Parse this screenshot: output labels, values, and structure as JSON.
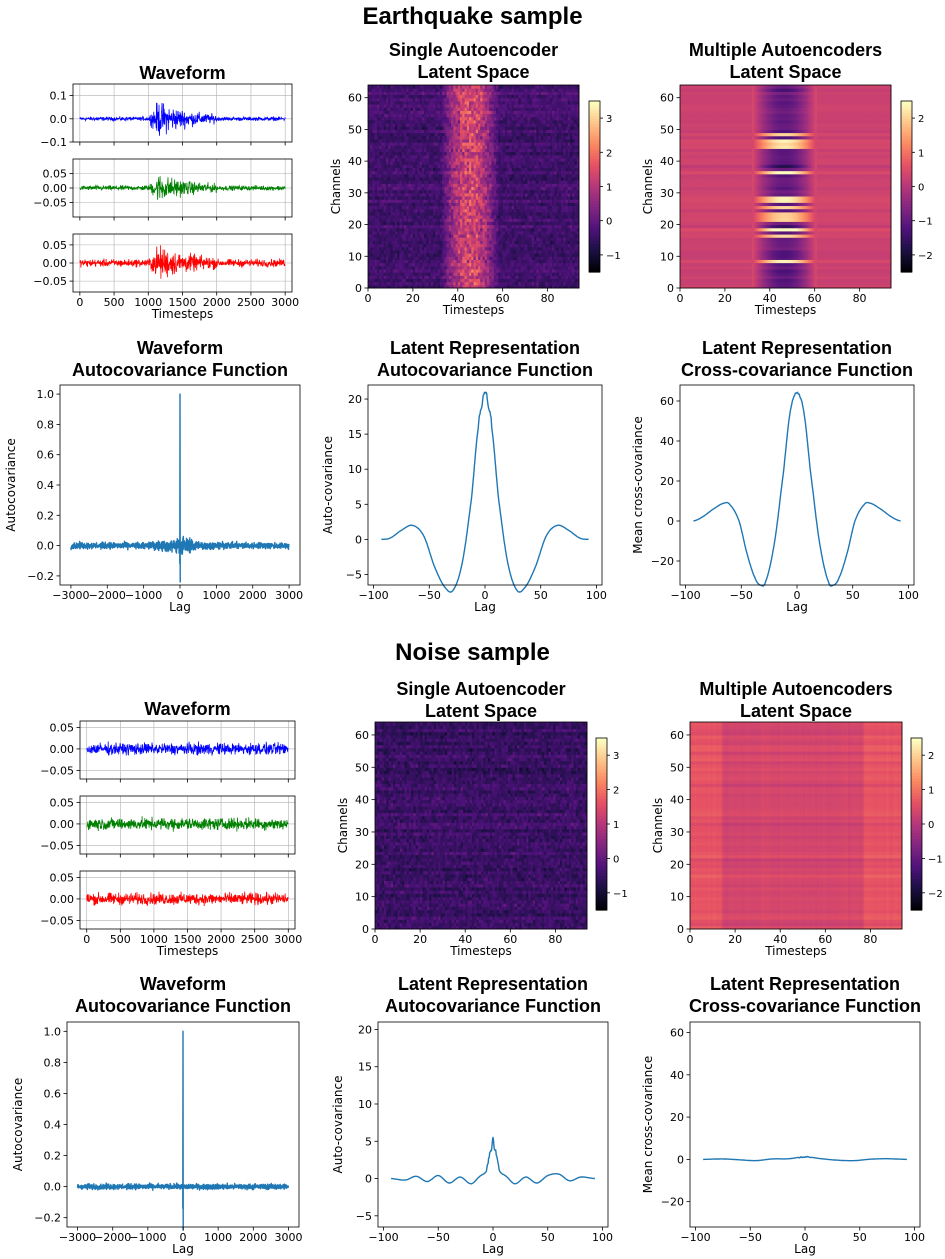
{
  "figure": {
    "sections": [
      {
        "title": "Earthquake sample"
      },
      {
        "title": "Noise sample"
      }
    ],
    "colormap": [
      "#000004",
      "#1c1044",
      "#4f127b",
      "#812581",
      "#b5367a",
      "#e55064",
      "#fb8761",
      "#fec287",
      "#fcfdbf"
    ]
  },
  "chart_data": [
    {
      "id": "eq-waveform",
      "type": "line",
      "section": "Earthquake sample",
      "title": "Waveform",
      "xlabel": "Timesteps",
      "ylabel": "",
      "panels": [
        {
          "color": "#0000ff",
          "ylim": [
            -0.1,
            0.15
          ],
          "yticks": [
            -0.1,
            0.0,
            0.1
          ],
          "yticklabels": [
            "−0.1",
            "0.0",
            "0.1"
          ],
          "amp_noise": 0.012,
          "amp_event": 0.11
        },
        {
          "color": "#008000",
          "ylim": [
            -0.1,
            0.1
          ],
          "yticks": [
            -0.05,
            0.0,
            0.05
          ],
          "yticklabels": [
            "−0.05",
            "0.00",
            "0.05"
          ],
          "amp_noise": 0.012,
          "amp_event": 0.07
        },
        {
          "color": "#ff0000",
          "ylim": [
            -0.08,
            0.08
          ],
          "yticks": [
            -0.05,
            0.0,
            0.05
          ],
          "yticklabels": [
            "−0.05",
            "0.00",
            "0.05"
          ],
          "amp_noise": 0.015,
          "amp_event": 0.07
        }
      ],
      "xlim": [
        -100,
        3100
      ],
      "xticks": [
        0,
        500,
        1000,
        1500,
        2000,
        2500,
        3000
      ],
      "event_range": [
        1000,
        2000
      ],
      "grid": true
    },
    {
      "id": "eq-single-latent",
      "type": "heatmap",
      "section": "Earthquake sample",
      "title": "Single Autoencoder\nLatent Space",
      "xlabel": "Timesteps",
      "ylabel": "Channels",
      "rows": 64,
      "cols": 94,
      "xticks": [
        0,
        20,
        40,
        60,
        80
      ],
      "yticks": [
        0,
        10,
        20,
        30,
        40,
        50,
        60
      ],
      "vmin": -1.5,
      "vmax": 3.5,
      "colorbar_ticks": [
        -1,
        0,
        1,
        2,
        3
      ],
      "colorbar_ticklabels": [
        "−1",
        "0",
        "1",
        "2",
        "3"
      ],
      "event_range": [
        32,
        58
      ],
      "style": "single_event"
    },
    {
      "id": "eq-multi-latent",
      "type": "heatmap",
      "section": "Earthquake sample",
      "title": "Multiple Autoencoders\nLatent Space",
      "xlabel": "Timesteps",
      "ylabel": "Channels",
      "rows": 64,
      "cols": 94,
      "xticks": [
        0,
        20,
        40,
        60,
        80
      ],
      "yticks": [
        0,
        10,
        20,
        30,
        40,
        50,
        60
      ],
      "vmin": -2.5,
      "vmax": 2.5,
      "colorbar_ticks": [
        -2,
        -1,
        0,
        1,
        2
      ],
      "colorbar_ticklabels": [
        "−2",
        "−1",
        "0",
        "1",
        "2"
      ],
      "event_range": [
        32,
        60
      ],
      "style": "multi_event"
    },
    {
      "id": "eq-waveform-acf",
      "type": "line",
      "section": "Earthquake sample",
      "title": "Waveform\nAutocovariance Function",
      "xlabel": "Lag",
      "ylabel": "Autocovariance",
      "xlim": [
        -3300,
        3300
      ],
      "ylim": [
        -0.26,
        1.06
      ],
      "xticks": [
        -3000,
        -2000,
        -1000,
        0,
        1000,
        2000,
        3000
      ],
      "xticklabels": [
        "−3000",
        "−2000",
        "−1000",
        "0",
        "1000",
        "2000",
        "3000"
      ],
      "yticks": [
        -0.2,
        0.0,
        0.2,
        0.4,
        0.6,
        0.8,
        1.0
      ],
      "yticklabels": [
        "−0.2",
        "0.0",
        "0.2",
        "0.4",
        "0.6",
        "0.8",
        "1.0"
      ],
      "peak": 1.0,
      "min": -0.24,
      "spread": 0.03,
      "core_width": 1300,
      "core_amp": 0.09,
      "color": "#1f77b4"
    },
    {
      "id": "eq-latent-acf",
      "type": "line",
      "section": "Earthquake sample",
      "title": "Latent Representation\nAutocovariance Function",
      "xlabel": "Lag",
      "ylabel": "Auto-covariance",
      "xlim": [
        -105,
        105
      ],
      "ylim": [
        -6.5,
        22
      ],
      "xticks": [
        -100,
        -50,
        0,
        50,
        100
      ],
      "xticklabels": [
        "−100",
        "−50",
        "0",
        "50",
        "100"
      ],
      "yticks": [
        -5,
        0,
        5,
        10,
        15,
        20
      ],
      "yticklabels": [
        "−5",
        "0",
        "5",
        "10",
        "15",
        "20"
      ],
      "x": [
        -93,
        -85,
        -75,
        -65,
        -55,
        -45,
        -35,
        -28,
        -20,
        -12,
        -6,
        -3,
        0,
        3,
        6,
        12,
        20,
        28,
        35,
        45,
        55,
        65,
        75,
        85,
        93
      ],
      "y": [
        0,
        0.2,
        1.3,
        2.0,
        0.5,
        -4,
        -7.0,
        -7.1,
        -3,
        6,
        16,
        19,
        21,
        19,
        16,
        6,
        -3,
        -7.1,
        -7.0,
        -4,
        0.5,
        2.0,
        1.3,
        0.2,
        0
      ],
      "color": "#1f77b4"
    },
    {
      "id": "eq-latent-ccf",
      "type": "line",
      "section": "Earthquake sample",
      "title": "Latent Representation\nCross-covariance Function",
      "xlabel": "Lag",
      "ylabel": "Mean cross-covariance",
      "xlim": [
        -105,
        105
      ],
      "ylim": [
        -32,
        68
      ],
      "xticks": [
        -100,
        -50,
        0,
        50,
        100
      ],
      "xticklabels": [
        "−100",
        "−50",
        "0",
        "50",
        "100"
      ],
      "yticks": [
        -20,
        0,
        20,
        40,
        60
      ],
      "yticklabels": [
        "−20",
        "0",
        "20",
        "40",
        "60"
      ],
      "x": [
        -93,
        -85,
        -75,
        -65,
        -60,
        -52,
        -45,
        -38,
        -33,
        -28,
        -20,
        -12,
        -6,
        0,
        6,
        12,
        20,
        28,
        33,
        38,
        45,
        52,
        60,
        65,
        75,
        85,
        93
      ],
      "y": [
        0,
        2,
        6,
        9,
        8,
        0,
        -16,
        -28,
        -32,
        -30,
        -10,
        25,
        55,
        64,
        55,
        25,
        -10,
        -30,
        -32,
        -28,
        -16,
        0,
        8,
        9,
        6,
        2,
        0
      ],
      "color": "#1f77b4"
    },
    {
      "id": "ns-waveform",
      "type": "line",
      "section": "Noise sample",
      "title": "Waveform",
      "xlabel": "Timesteps",
      "ylabel": "",
      "panels": [
        {
          "color": "#0000ff",
          "ylim": [
            -0.07,
            0.065
          ],
          "yticks": [
            -0.05,
            0.0,
            0.05
          ],
          "yticklabels": [
            "−0.05",
            "0.00",
            "0.05"
          ],
          "amp_noise": 0.02,
          "amp_event": 0.02
        },
        {
          "color": "#008000",
          "ylim": [
            -0.07,
            0.065
          ],
          "yticks": [
            -0.05,
            0.0,
            0.05
          ],
          "yticklabels": [
            "−0.05",
            "0.00",
            "0.05"
          ],
          "amp_noise": 0.02,
          "amp_event": 0.02
        },
        {
          "color": "#ff0000",
          "ylim": [
            -0.07,
            0.065
          ],
          "yticks": [
            -0.05,
            0.0,
            0.05
          ],
          "yticklabels": [
            "−0.05",
            "0.00",
            "0.05"
          ],
          "amp_noise": 0.02,
          "amp_event": 0.02
        }
      ],
      "xlim": [
        -100,
        3100
      ],
      "xticks": [
        0,
        500,
        1000,
        1500,
        2000,
        2500,
        3000
      ],
      "event_range": [
        0,
        0
      ],
      "grid": true
    },
    {
      "id": "ns-single-latent",
      "type": "heatmap",
      "section": "Noise sample",
      "title": "Single Autoencoder\nLatent Space",
      "xlabel": "Timesteps",
      "ylabel": "Channels",
      "rows": 64,
      "cols": 94,
      "xticks": [
        0,
        20,
        40,
        60,
        80
      ],
      "yticks": [
        0,
        10,
        20,
        30,
        40,
        50,
        60
      ],
      "vmin": -1.5,
      "vmax": 3.5,
      "colorbar_ticks": [
        -1,
        0,
        1,
        2,
        3
      ],
      "colorbar_ticklabels": [
        "−1",
        "0",
        "1",
        "2",
        "3"
      ],
      "event_range": [
        0,
        0
      ],
      "style": "single_noise"
    },
    {
      "id": "ns-multi-latent",
      "type": "heatmap",
      "section": "Noise sample",
      "title": "Multiple Autoencoders\nLatent Space",
      "xlabel": "Timesteps",
      "ylabel": "Channels",
      "rows": 64,
      "cols": 94,
      "xticks": [
        0,
        20,
        40,
        60,
        80
      ],
      "yticks": [
        0,
        10,
        20,
        30,
        40,
        50,
        60
      ],
      "vmin": -2.5,
      "vmax": 2.5,
      "colorbar_ticks": [
        -2,
        -1,
        0,
        1,
        2
      ],
      "colorbar_ticklabels": [
        "−2",
        "−1",
        "0",
        "1",
        "2"
      ],
      "event_range": [
        0,
        0
      ],
      "style": "multi_noise"
    },
    {
      "id": "ns-waveform-acf",
      "type": "line",
      "section": "Noise sample",
      "title": "Waveform\nAutocovariance Function",
      "xlabel": "Lag",
      "ylabel": "Autocovariance",
      "xlim": [
        -3300,
        3300
      ],
      "ylim": [
        -0.26,
        1.06
      ],
      "xticks": [
        -3000,
        -2000,
        -1000,
        0,
        1000,
        2000,
        3000
      ],
      "xticklabels": [
        "−3000",
        "−2000",
        "−1000",
        "0",
        "1000",
        "2000",
        "3000"
      ],
      "yticks": [
        -0.2,
        0.0,
        0.2,
        0.4,
        0.6,
        0.8,
        1.0
      ],
      "yticklabels": [
        "−0.2",
        "0.0",
        "0.2",
        "0.4",
        "0.6",
        "0.8",
        "1.0"
      ],
      "peak": 1.0,
      "min": -0.28,
      "spread": 0.025,
      "core_width": 0,
      "core_amp": 0,
      "color": "#1f77b4"
    },
    {
      "id": "ns-latent-acf",
      "type": "line",
      "section": "Noise sample",
      "title": "Latent Representation\nAutocovariance Function",
      "xlabel": "Lag",
      "ylabel": "Auto-covariance",
      "xlim": [
        -105,
        105
      ],
      "ylim": [
        -6.5,
        21
      ],
      "xticks": [
        -100,
        -50,
        0,
        50,
        100
      ],
      "xticklabels": [
        "−100",
        "−50",
        "0",
        "50",
        "100"
      ],
      "yticks": [
        -5,
        0,
        5,
        10,
        15,
        20
      ],
      "yticklabels": [
        "−5",
        "0",
        "5",
        "10",
        "15",
        "20"
      ],
      "x": [
        -93,
        -80,
        -70,
        -60,
        -50,
        -40,
        -30,
        -20,
        -12,
        -6,
        -3,
        -1,
        0,
        1,
        3,
        6,
        12,
        20,
        30,
        40,
        50,
        60,
        70,
        80,
        93
      ],
      "y": [
        0,
        -0.2,
        0.3,
        -0.4,
        0.4,
        -0.6,
        0.2,
        -0.7,
        0.3,
        1.0,
        3.2,
        4.2,
        5.5,
        4.2,
        3.2,
        1.0,
        0.3,
        -0.7,
        0.2,
        -0.6,
        0.4,
        0.6,
        -0.3,
        0.2,
        0
      ],
      "color": "#1f77b4"
    },
    {
      "id": "ns-latent-ccf",
      "type": "line",
      "section": "Noise sample",
      "title": "Latent Representation\nCross-covariance Function",
      "xlabel": "Lag",
      "ylabel": "Mean cross-covariance",
      "xlim": [
        -105,
        105
      ],
      "ylim": [
        -32,
        65
      ],
      "xticks": [
        -100,
        -50,
        0,
        50,
        100
      ],
      "xticklabels": [
        "−100",
        "−50",
        "0",
        "50",
        "100"
      ],
      "yticks": [
        -20,
        0,
        20,
        40,
        60
      ],
      "yticklabels": [
        "−20",
        "0",
        "20",
        "40",
        "60"
      ],
      "x": [
        -93,
        -75,
        -60,
        -45,
        -30,
        -15,
        0,
        15,
        30,
        45,
        60,
        75,
        93
      ],
      "y": [
        0,
        0.2,
        -0.2,
        -0.6,
        0.2,
        0.3,
        1.2,
        0.3,
        -0.4,
        -0.6,
        0.1,
        0.3,
        0
      ],
      "color": "#1f77b4"
    }
  ]
}
